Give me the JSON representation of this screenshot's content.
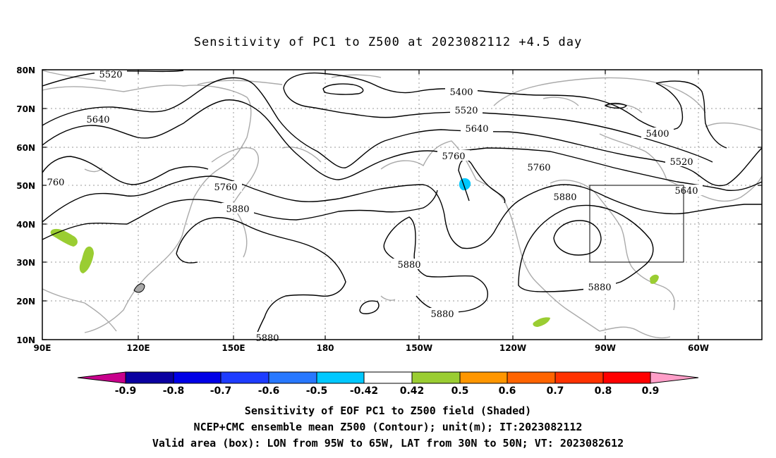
{
  "title": "Sensitivity of PC1 to Z500 at 2023082112 +4.5 day",
  "map": {
    "lat_ticks": [
      "80N",
      "70N",
      "60N",
      "50N",
      "40N",
      "30N",
      "20N",
      "10N"
    ],
    "lon_ticks": [
      "90E",
      "120E",
      "150E",
      "180",
      "150W",
      "120W",
      "90W",
      "60W"
    ],
    "contour_labels": [
      "5520",
      "5640",
      "760",
      "5760",
      "5880",
      "5400",
      "5520",
      "5640",
      "5760",
      "5400",
      "5520",
      "5640",
      "5760",
      "5880",
      "5880",
      "5880",
      "5880",
      "5880"
    ],
    "valid_box": {
      "lon_range": [
        "95W",
        "65W"
      ],
      "lat_range": [
        "30N",
        "50N"
      ]
    }
  },
  "colorbar": {
    "labels": [
      "-0.9",
      "-0.8",
      "-0.7",
      "-0.6",
      "-0.5",
      "-0.42",
      "0.42",
      "0.5",
      "0.6",
      "0.7",
      "0.8",
      "0.9"
    ],
    "colors": [
      "#c8008c",
      "#0a00a0",
      "#0000e6",
      "#1e3cff",
      "#2878ff",
      "#00c8ff",
      "#ffffff",
      "#9acd32",
      "#ff9600",
      "#ff6400",
      "#ff3200",
      "#ff0000",
      "#ff9ec8"
    ]
  },
  "captions": [
    "Sensitivity of EOF PC1 to Z500 field (Shaded)",
    "NCEP+CMC ensemble mean Z500 (Contour); unit(m); IT:2023082112",
    "Valid area (box): LON from 95W to 65W, LAT from 30N to 50N; VT: 2023082612"
  ]
}
